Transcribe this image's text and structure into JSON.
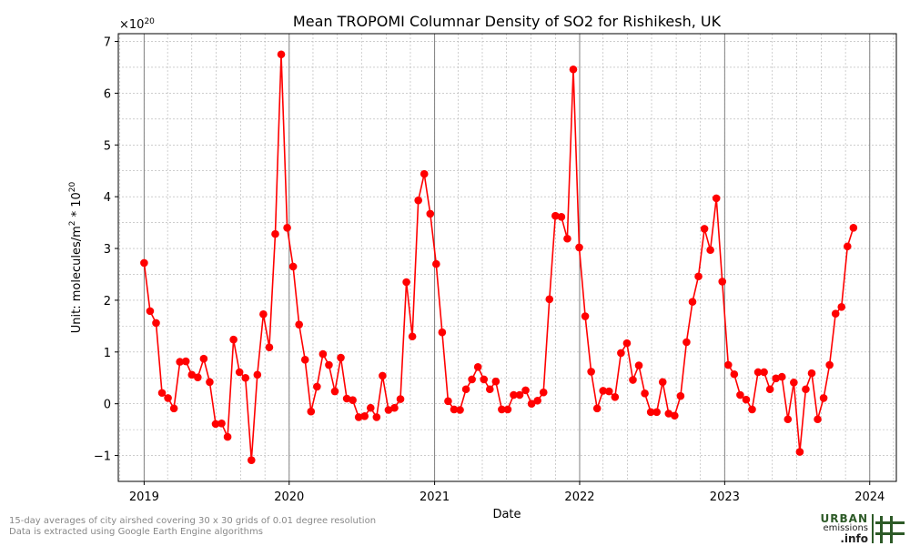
{
  "chart_data": {
    "type": "line",
    "title": "Mean TROPOMI Columnar Density of SO2 for Rishikesh, UK",
    "xlabel": "Date",
    "ylabel_main": "Unit: molecules/m",
    "ylabel_sup": "2",
    "ylabel_mid": " * 10",
    "ylabel_exp": "20",
    "offset_base": "×10",
    "offset_exp": "20",
    "xlim": [
      "2018-10-28",
      "2024-03-08"
    ],
    "ylim": [
      -1.5,
      7.15
    ],
    "yticks": [
      -1,
      0,
      1,
      2,
      3,
      4,
      5,
      6,
      7
    ],
    "ytick_labels": [
      "−1",
      "0",
      "1",
      "2",
      "3",
      "4",
      "5",
      "6",
      "7"
    ],
    "xticks": [
      "2019-01-01",
      "2020-01-01",
      "2021-01-01",
      "2022-01-01",
      "2023-01-01",
      "2024-01-01"
    ],
    "xtick_labels": [
      "2019",
      "2020",
      "2021",
      "2022",
      "2023",
      "2024"
    ],
    "grid": true,
    "line_color": "#ff0000",
    "marker_color": "#ff0000",
    "series": [
      {
        "values": [
          [
            "2019-01-01",
            2.72
          ],
          [
            "2019-01-16",
            1.79
          ],
          [
            "2019-01-31",
            1.56
          ],
          [
            "2019-02-15",
            0.21
          ],
          [
            "2019-03-02",
            0.11
          ],
          [
            "2019-03-17",
            -0.09
          ],
          [
            "2019-04-01",
            0.81
          ],
          [
            "2019-04-16",
            0.82
          ],
          [
            "2019-05-01",
            0.56
          ],
          [
            "2019-05-16",
            0.51
          ],
          [
            "2019-05-31",
            0.87
          ],
          [
            "2019-06-15",
            0.42
          ],
          [
            "2019-06-30",
            -0.39
          ],
          [
            "2019-07-15",
            -0.38
          ],
          [
            "2019-07-30",
            -0.64
          ],
          [
            "2019-08-14",
            1.24
          ],
          [
            "2019-08-29",
            0.61
          ],
          [
            "2019-09-13",
            0.5
          ],
          [
            "2019-09-28",
            -1.09
          ],
          [
            "2019-10-13",
            0.56
          ],
          [
            "2019-10-28",
            1.73
          ],
          [
            "2019-11-12",
            1.09
          ],
          [
            "2019-11-27",
            3.28
          ],
          [
            "2019-12-12",
            6.75
          ],
          [
            "2019-12-27",
            3.4
          ],
          [
            "2020-01-11",
            2.65
          ],
          [
            "2020-01-26",
            1.53
          ],
          [
            "2020-02-10",
            0.85
          ],
          [
            "2020-02-25",
            -0.15
          ],
          [
            "2020-03-11",
            0.33
          ],
          [
            "2020-03-26",
            0.96
          ],
          [
            "2020-04-10",
            0.75
          ],
          [
            "2020-04-25",
            0.24
          ],
          [
            "2020-05-10",
            0.89
          ],
          [
            "2020-05-25",
            0.1
          ],
          [
            "2020-06-09",
            0.07
          ],
          [
            "2020-06-24",
            -0.26
          ],
          [
            "2020-07-09",
            -0.24
          ],
          [
            "2020-07-24",
            -0.08
          ],
          [
            "2020-08-08",
            -0.26
          ],
          [
            "2020-08-23",
            0.54
          ],
          [
            "2020-09-07",
            -0.12
          ],
          [
            "2020-09-22",
            -0.08
          ],
          [
            "2020-10-07",
            0.09
          ],
          [
            "2020-10-22",
            2.35
          ],
          [
            "2020-11-06",
            1.3
          ],
          [
            "2020-11-21",
            3.93
          ],
          [
            "2020-12-06",
            4.44
          ],
          [
            "2020-12-21",
            3.67
          ],
          [
            "2021-01-05",
            2.7
          ],
          [
            "2021-01-20",
            1.38
          ],
          [
            "2021-02-04",
            0.05
          ],
          [
            "2021-02-19",
            -0.11
          ],
          [
            "2021-03-06",
            -0.12
          ],
          [
            "2021-03-21",
            0.28
          ],
          [
            "2021-04-05",
            0.47
          ],
          [
            "2021-04-20",
            0.71
          ],
          [
            "2021-05-05",
            0.47
          ],
          [
            "2021-05-20",
            0.28
          ],
          [
            "2021-06-04",
            0.43
          ],
          [
            "2021-06-19",
            -0.11
          ],
          [
            "2021-07-04",
            -0.11
          ],
          [
            "2021-07-19",
            0.17
          ],
          [
            "2021-08-03",
            0.17
          ],
          [
            "2021-08-18",
            0.26
          ],
          [
            "2021-09-02",
            0.0
          ],
          [
            "2021-09-17",
            0.06
          ],
          [
            "2021-10-02",
            0.22
          ],
          [
            "2021-10-17",
            2.02
          ],
          [
            "2021-11-01",
            3.63
          ],
          [
            "2021-11-16",
            3.61
          ],
          [
            "2021-12-01",
            3.19
          ],
          [
            "2021-12-16",
            6.46
          ],
          [
            "2021-12-31",
            3.02
          ],
          [
            "2022-01-15",
            1.69
          ],
          [
            "2022-01-30",
            0.62
          ],
          [
            "2022-02-14",
            -0.09
          ],
          [
            "2022-03-01",
            0.25
          ],
          [
            "2022-03-16",
            0.24
          ],
          [
            "2022-03-31",
            0.13
          ],
          [
            "2022-04-15",
            0.98
          ],
          [
            "2022-04-30",
            1.17
          ],
          [
            "2022-05-15",
            0.46
          ],
          [
            "2022-05-30",
            0.74
          ],
          [
            "2022-06-14",
            0.2
          ],
          [
            "2022-06-29",
            -0.16
          ],
          [
            "2022-07-14",
            -0.16
          ],
          [
            "2022-07-29",
            0.42
          ],
          [
            "2022-08-13",
            -0.19
          ],
          [
            "2022-08-28",
            -0.23
          ],
          [
            "2022-09-12",
            0.15
          ],
          [
            "2022-09-27",
            1.19
          ],
          [
            "2022-10-12",
            1.97
          ],
          [
            "2022-10-27",
            2.46
          ],
          [
            "2022-11-11",
            3.38
          ],
          [
            "2022-11-26",
            2.97
          ],
          [
            "2022-12-11",
            3.97
          ],
          [
            "2022-12-26",
            2.36
          ],
          [
            "2023-01-10",
            0.75
          ],
          [
            "2023-01-25",
            0.57
          ],
          [
            "2023-02-09",
            0.17
          ],
          [
            "2023-02-24",
            0.08
          ],
          [
            "2023-03-11",
            -0.11
          ],
          [
            "2023-03-26",
            0.61
          ],
          [
            "2023-04-10",
            0.61
          ],
          [
            "2023-04-25",
            0.28
          ],
          [
            "2023-05-10",
            0.49
          ],
          [
            "2023-05-25",
            0.52
          ],
          [
            "2023-06-09",
            -0.3
          ],
          [
            "2023-06-24",
            0.41
          ],
          [
            "2023-07-09",
            -0.93
          ],
          [
            "2023-07-24",
            0.28
          ],
          [
            "2023-08-08",
            0.59
          ],
          [
            "2023-08-23",
            -0.3
          ],
          [
            "2023-09-07",
            0.11
          ],
          [
            "2023-09-22",
            0.75
          ],
          [
            "2023-10-07",
            1.74
          ],
          [
            "2023-10-22",
            1.87
          ],
          [
            "2023-11-06",
            3.04
          ],
          [
            "2023-11-21",
            3.4
          ]
        ]
      }
    ]
  },
  "footnote": {
    "line1": "15-day averages of city airshed covering 30 x 30 grids of 0.01 degree resolution",
    "line2": "Data is extracted using Google Earth Engine algorithms"
  },
  "logo": {
    "line1": "URBAN",
    "line2": "emissions",
    "line3": ".info",
    "icon": "grid-hash-icon",
    "colors": {
      "green": "#2d5a27",
      "dark": "#222222"
    }
  }
}
